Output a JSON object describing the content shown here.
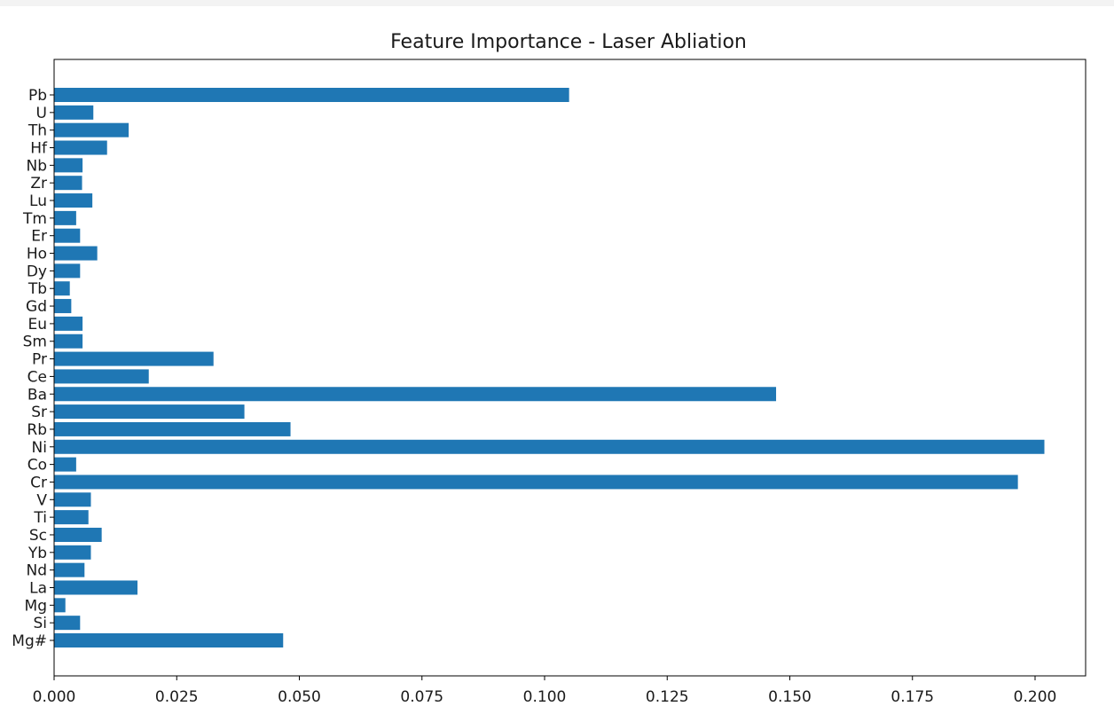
{
  "chart_data": {
    "type": "bar",
    "orientation": "horizontal",
    "title": "Feature Importance - Laser Abliation",
    "xlabel": "",
    "ylabel": "",
    "xlim": [
      0,
      0.2125
    ],
    "xticks": [
      "0.000",
      "0.025",
      "0.050",
      "0.075",
      "0.100",
      "0.125",
      "0.150",
      "0.175",
      "0.200"
    ],
    "bar_color": "#1f77b4",
    "grid": false,
    "categories": [
      "Mg#",
      "Si",
      "Mg",
      "La",
      "Nd",
      "Yb",
      "Sc",
      "Ti",
      "V",
      "Cr",
      "Co",
      "Ni",
      "Rb",
      "Sr",
      "Ba",
      "Ce",
      "Pr",
      "Sm",
      "Eu",
      "Gd",
      "Tb",
      "Dy",
      "Ho",
      "Er",
      "Tm",
      "Lu",
      "Zr",
      "Nb",
      "Hf",
      "Th",
      "U",
      "Pb"
    ],
    "values": [
      0.0467,
      0.0053,
      0.0023,
      0.017,
      0.0062,
      0.0075,
      0.0097,
      0.007,
      0.0075,
      0.1965,
      0.0045,
      0.2019,
      0.0482,
      0.0388,
      0.1472,
      0.0193,
      0.0325,
      0.0058,
      0.0058,
      0.0035,
      0.0032,
      0.0053,
      0.0088,
      0.0053,
      0.0045,
      0.0078,
      0.0057,
      0.0058,
      0.0108,
      0.0152,
      0.008,
      0.105
    ]
  }
}
